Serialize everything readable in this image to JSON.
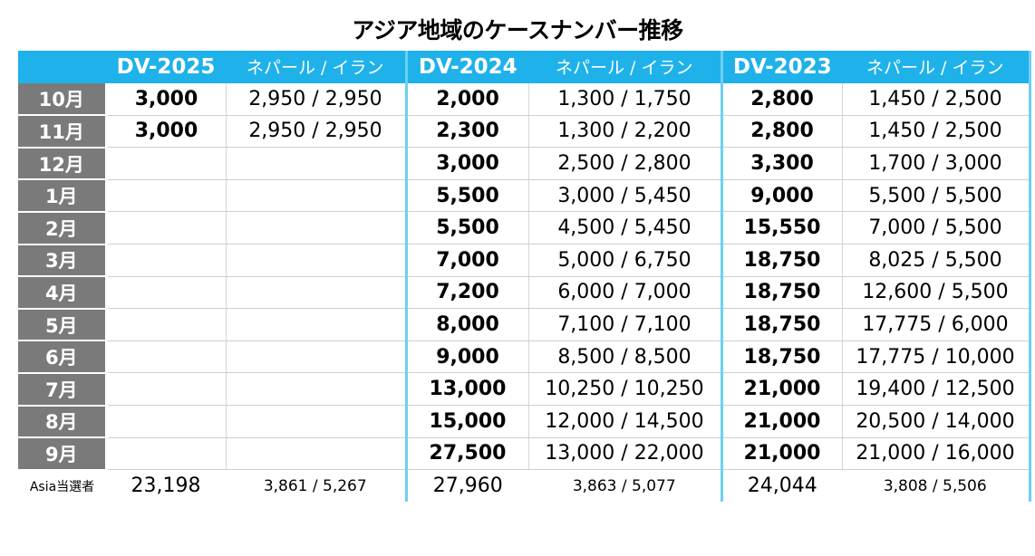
{
  "title": "アジア地域のケースナンバー推移",
  "header": {
    "groups": [
      {
        "dv": "DV-2025",
        "sub": "ネパール / イラン"
      },
      {
        "dv": "DV-2024",
        "sub": "ネパール / イラン"
      },
      {
        "dv": "DV-2023",
        "sub": "ネパール / イラン"
      }
    ]
  },
  "rows": [
    {
      "month": "10月",
      "cells": [
        "3,000",
        "2,950 / 2,950",
        "2,000",
        "1,300 / 1,750",
        "2,800",
        "1,450 / 2,500"
      ]
    },
    {
      "month": "11月",
      "cells": [
        "3,000",
        "2,950 / 2,950",
        "2,300",
        "1,300 / 2,200",
        "2,800",
        "1,450 / 2,500"
      ]
    },
    {
      "month": "12月",
      "cells": [
        "",
        "",
        "3,000",
        "2,500 / 2,800",
        "3,300",
        "1,700 / 3,000"
      ]
    },
    {
      "month": "1月",
      "cells": [
        "",
        "",
        "5,500",
        "3,000 / 5,450",
        "9,000",
        "5,500 / 5,500"
      ]
    },
    {
      "month": "2月",
      "cells": [
        "",
        "",
        "5,500",
        "4,500 / 5,450",
        "15,550",
        "7,000 / 5,500"
      ]
    },
    {
      "month": "3月",
      "cells": [
        "",
        "",
        "7,000",
        "5,000 / 6,750",
        "18,750",
        "8,025 / 5,500"
      ]
    },
    {
      "month": "4月",
      "cells": [
        "",
        "",
        "7,200",
        "6,000 / 7,000",
        "18,750",
        "12,600 / 5,500"
      ]
    },
    {
      "month": "5月",
      "cells": [
        "",
        "",
        "8,000",
        "7,100 / 7,100",
        "18,750",
        "17,775 / 6,000"
      ]
    },
    {
      "month": "6月",
      "cells": [
        "",
        "",
        "9,000",
        "8,500 / 8,500",
        "18,750",
        "17,775 / 10,000"
      ]
    },
    {
      "month": "7月",
      "cells": [
        "",
        "",
        "13,000",
        "10,250 / 10,250",
        "21,000",
        "19,400 / 12,500"
      ]
    },
    {
      "month": "8月",
      "cells": [
        "",
        "",
        "15,000",
        "12,000 / 14,500",
        "21,000",
        "20,500 / 14,000"
      ]
    },
    {
      "month": "9月",
      "cells": [
        "",
        "",
        "27,500",
        "13,000 / 22,000",
        "21,000",
        "21,000 / 16,000"
      ]
    }
  ],
  "footer": {
    "label": "Asia当選者",
    "cells": [
      "23,198",
      "3,861 / 5,267",
      "27,960",
      "3,863 / 5,077",
      "24,044",
      "3,808 / 5,506"
    ]
  },
  "colors": {
    "header_bg": "#1fb2ea",
    "month_bg": "#7a7a7a",
    "separator": "#6ecff4"
  }
}
